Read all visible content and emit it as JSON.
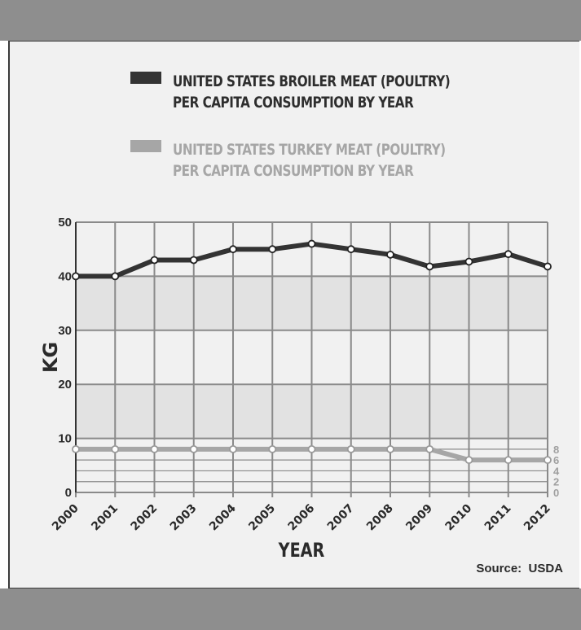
{
  "legend": {
    "broiler": {
      "line1": "UNITED STATES BROILER MEAT (POULTRY)",
      "line2": "PER CAPITA CONSUMPTION BY YEAR",
      "color": "#333333"
    },
    "turkey": {
      "line1": "UNITED STATES  TURKEY MEAT (POULTRY)",
      "line2": "PER CAPITA CONSUMPTION BY YEAR",
      "color": "#a6a6a6"
    }
  },
  "source": "Source:  USDA",
  "chart_data": {
    "type": "line",
    "xlabel": "YEAR",
    "ylabel": "KG",
    "ylim": [
      0,
      50
    ],
    "grid": true,
    "legend_position": "top",
    "categories": [
      "2000",
      "2001",
      "2002",
      "2003",
      "2004",
      "2005",
      "2006",
      "2007",
      "2008",
      "2009",
      "2010",
      "2011",
      "2012"
    ],
    "yticks": [
      0,
      10,
      20,
      30,
      40,
      50
    ],
    "right_yticks": [
      0,
      2,
      4,
      6,
      8
    ],
    "series": [
      {
        "name": "UNITED STATES BROILER MEAT (POULTRY) PER CAPITA CONSUMPTION BY YEAR",
        "color": "#333333",
        "values": [
          40,
          40,
          43,
          43,
          45,
          45,
          46,
          45,
          44,
          41.8,
          42.7,
          44.1,
          41.8
        ]
      },
      {
        "name": "UNITED STATES  TURKEY MEAT (POULTRY) PER CAPITA CONSUMPTION BY YEAR",
        "color": "#a6a6a6",
        "values": [
          8,
          8,
          8,
          8,
          8,
          8,
          8,
          8,
          8,
          8,
          6,
          6,
          6
        ]
      }
    ]
  }
}
